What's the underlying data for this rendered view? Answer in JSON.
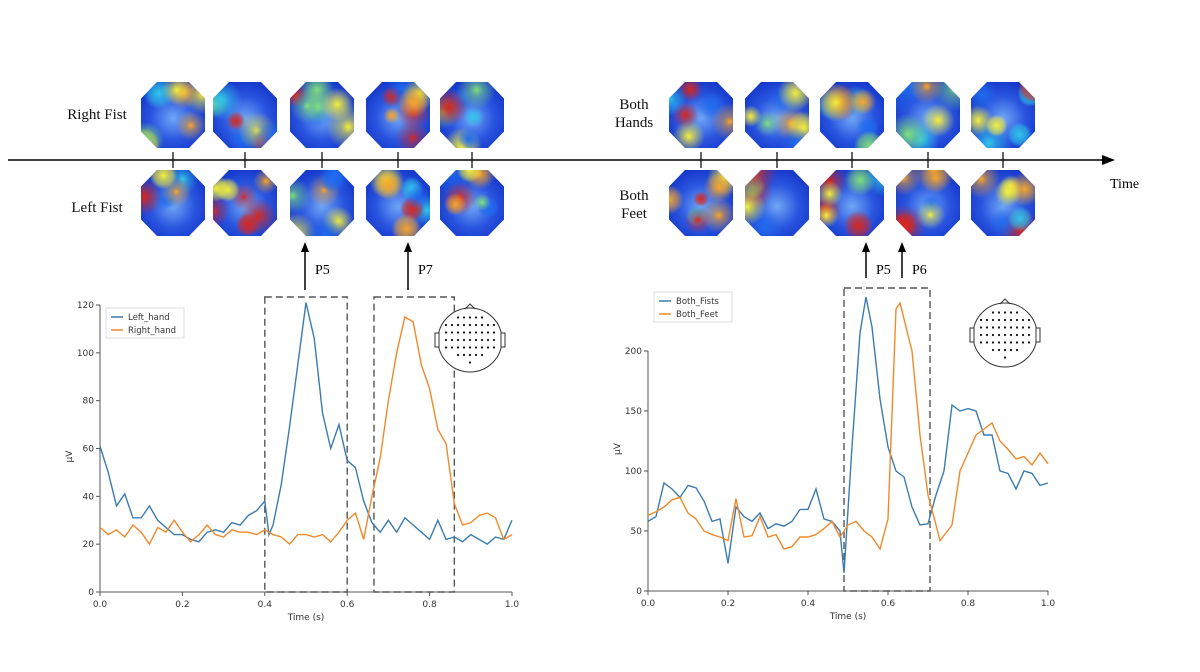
{
  "timeline": {
    "label": "Time",
    "row_labels": {
      "left_top": "Right Fist",
      "left_bottom": "Left Fist",
      "right_top": "Both Hands",
      "right_bottom": "Both Feet"
    }
  },
  "markers": [
    {
      "label": "P5"
    },
    {
      "label": "P7"
    },
    {
      "label": "P5"
    },
    {
      "label": "P6"
    }
  ],
  "colors": {
    "blue": "#3b7bb0",
    "orange": "#f0892a"
  },
  "chart_data": [
    {
      "type": "line",
      "xlabel": "Time (s)",
      "ylabel": "µV",
      "xlim": [
        0,
        1
      ],
      "ylim": [
        0,
        125
      ],
      "xticks": [
        "0.0",
        "0.2",
        "0.4",
        "0.6",
        "0.8",
        "1.0"
      ],
      "yticks": [
        "0",
        "20",
        "40",
        "60",
        "80",
        "100",
        "120"
      ],
      "legend": "top-left",
      "highlight_windows": [
        [
          0.4,
          0.6
        ],
        [
          0.665,
          0.86
        ]
      ],
      "series": [
        {
          "name": "Left_hand",
          "x": [
            0,
            0.02,
            0.04,
            0.06,
            0.08,
            0.1,
            0.12,
            0.14,
            0.16,
            0.18,
            0.2,
            0.22,
            0.24,
            0.26,
            0.28,
            0.3,
            0.32,
            0.34,
            0.36,
            0.38,
            0.4,
            0.41,
            0.42,
            0.44,
            0.46,
            0.48,
            0.5,
            0.52,
            0.54,
            0.56,
            0.58,
            0.6,
            0.62,
            0.64,
            0.66,
            0.68,
            0.7,
            0.72,
            0.74,
            0.76,
            0.78,
            0.8,
            0.82,
            0.84,
            0.86,
            0.88,
            0.9,
            0.92,
            0.94,
            0.96,
            0.98,
            1.0
          ],
          "y": [
            61,
            50,
            36,
            41,
            31,
            31,
            36,
            30,
            27,
            24,
            24,
            22,
            21,
            25,
            26,
            25,
            29,
            28,
            32,
            34,
            38,
            24,
            28,
            45,
            69,
            95,
            121,
            106,
            75,
            60,
            70,
            55,
            52,
            38,
            29,
            25,
            30,
            25,
            31,
            28,
            25,
            22,
            30,
            22,
            23,
            21,
            24,
            22,
            20,
            23,
            22,
            30
          ]
        },
        {
          "name": "Right_hand",
          "x": [
            0,
            0.02,
            0.04,
            0.06,
            0.08,
            0.1,
            0.12,
            0.14,
            0.16,
            0.18,
            0.2,
            0.22,
            0.24,
            0.26,
            0.28,
            0.3,
            0.32,
            0.34,
            0.36,
            0.38,
            0.4,
            0.42,
            0.44,
            0.46,
            0.48,
            0.5,
            0.52,
            0.54,
            0.56,
            0.58,
            0.6,
            0.62,
            0.64,
            0.66,
            0.68,
            0.7,
            0.72,
            0.74,
            0.76,
            0.78,
            0.8,
            0.82,
            0.84,
            0.86,
            0.88,
            0.9,
            0.92,
            0.94,
            0.96,
            0.98,
            1.0
          ],
          "y": [
            27,
            24,
            26,
            23,
            28,
            25,
            20,
            27,
            25,
            30,
            25,
            21,
            24,
            28,
            24,
            23,
            26,
            25,
            25,
            24,
            26,
            24,
            23,
            20,
            24,
            24,
            23,
            24,
            21,
            25,
            30,
            33,
            22,
            40,
            56,
            80,
            100,
            115,
            113,
            95,
            85,
            68,
            62,
            37,
            28,
            29,
            32,
            33,
            31,
            22,
            24
          ]
        }
      ]
    },
    {
      "type": "line",
      "xlabel": "Time (s)",
      "ylabel": "µV",
      "xlim": [
        0,
        1
      ],
      "ylim": [
        0,
        250
      ],
      "xticks": [
        "0.0",
        "0.2",
        "0.4",
        "0.6",
        "0.8",
        "1.0"
      ],
      "yticks": [
        "0",
        "50",
        "100",
        "150",
        "200"
      ],
      "legend": "top-left",
      "highlight_windows": [
        [
          0.49,
          0.705
        ]
      ],
      "series": [
        {
          "name": "Both_Fists",
          "x": [
            0,
            0.02,
            0.04,
            0.06,
            0.08,
            0.1,
            0.12,
            0.14,
            0.16,
            0.18,
            0.2,
            0.22,
            0.24,
            0.26,
            0.28,
            0.3,
            0.32,
            0.34,
            0.36,
            0.38,
            0.4,
            0.42,
            0.44,
            0.46,
            0.48,
            0.49,
            0.51,
            0.53,
            0.545,
            0.56,
            0.58,
            0.6,
            0.62,
            0.64,
            0.66,
            0.68,
            0.7,
            0.72,
            0.74,
            0.76,
            0.78,
            0.8,
            0.82,
            0.84,
            0.86,
            0.88,
            0.9,
            0.92,
            0.94,
            0.96,
            0.98,
            1.0
          ],
          "y": [
            58,
            62,
            90,
            85,
            78,
            88,
            86,
            75,
            58,
            60,
            23,
            70,
            62,
            58,
            65,
            52,
            56,
            54,
            58,
            68,
            68,
            85,
            60,
            58,
            50,
            15,
            120,
            215,
            245,
            220,
            160,
            120,
            100,
            95,
            70,
            55,
            56,
            80,
            100,
            155,
            150,
            152,
            150,
            130,
            130,
            100,
            98,
            85,
            100,
            98,
            88,
            90
          ]
        },
        {
          "name": "Both_Feet",
          "x": [
            0,
            0.02,
            0.04,
            0.06,
            0.08,
            0.1,
            0.12,
            0.14,
            0.16,
            0.18,
            0.2,
            0.22,
            0.24,
            0.26,
            0.28,
            0.3,
            0.32,
            0.34,
            0.36,
            0.38,
            0.4,
            0.42,
            0.44,
            0.46,
            0.48,
            0.5,
            0.52,
            0.54,
            0.56,
            0.58,
            0.6,
            0.62,
            0.63,
            0.66,
            0.68,
            0.7,
            0.72,
            0.73,
            0.76,
            0.78,
            0.8,
            0.82,
            0.84,
            0.86,
            0.88,
            0.9,
            0.92,
            0.94,
            0.96,
            0.98,
            1.0
          ],
          "y": [
            63,
            66,
            70,
            76,
            78,
            65,
            60,
            50,
            47,
            45,
            42,
            77,
            45,
            46,
            62,
            45,
            47,
            35,
            37,
            45,
            45,
            47,
            52,
            58,
            45,
            55,
            58,
            50,
            45,
            35,
            60,
            235,
            240,
            200,
            130,
            80,
            55,
            42,
            55,
            100,
            115,
            130,
            135,
            140,
            125,
            118,
            110,
            112,
            105,
            115,
            106
          ]
        }
      ]
    }
  ]
}
